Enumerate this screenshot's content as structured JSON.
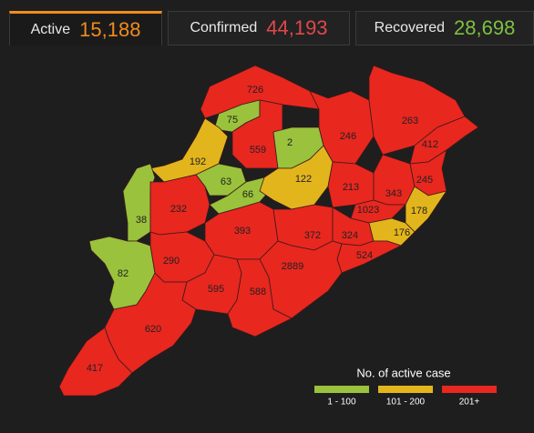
{
  "tabs": [
    {
      "label": "Active",
      "value": "15,188",
      "color": "#f28c1c"
    },
    {
      "label": "Confirmed",
      "value": "44,193",
      "color": "#e0474c"
    },
    {
      "label": "Recovered",
      "value": "28,698",
      "color": "#7cc142"
    }
  ],
  "map": {
    "districts": [
      {
        "value": 726,
        "color": "#e8271f"
      },
      {
        "value": 75,
        "color": "#9ac23c"
      },
      {
        "value": 559,
        "color": "#e8271f"
      },
      {
        "value": 2,
        "color": "#9ac23c"
      },
      {
        "value": 246,
        "color": "#e8271f"
      },
      {
        "value": 263,
        "color": "#e8271f"
      },
      {
        "value": 412,
        "color": "#e8271f"
      },
      {
        "value": 192,
        "color": "#e3b51c"
      },
      {
        "value": 63,
        "color": "#9ac23c"
      },
      {
        "value": 66,
        "color": "#9ac23c"
      },
      {
        "value": 122,
        "color": "#e3b51c"
      },
      {
        "value": 213,
        "color": "#e8271f"
      },
      {
        "value": 343,
        "color": "#e8271f"
      },
      {
        "value": 245,
        "color": "#e8271f"
      },
      {
        "value": 178,
        "color": "#e3b51c"
      },
      {
        "value": 1023,
        "color": "#e8271f"
      },
      {
        "value": 38,
        "color": "#9ac23c"
      },
      {
        "value": 232,
        "color": "#e8271f"
      },
      {
        "value": 393,
        "color": "#e8271f"
      },
      {
        "value": 372,
        "color": "#e8271f"
      },
      {
        "value": 324,
        "color": "#e8271f"
      },
      {
        "value": 176,
        "color": "#e3b51c"
      },
      {
        "value": 524,
        "color": "#e8271f"
      },
      {
        "value": 82,
        "color": "#9ac23c"
      },
      {
        "value": 290,
        "color": "#e8271f"
      },
      {
        "value": 2889,
        "color": "#e8271f"
      },
      {
        "value": 595,
        "color": "#e8271f"
      },
      {
        "value": 588,
        "color": "#e8271f"
      },
      {
        "value": 620,
        "color": "#e8271f"
      },
      {
        "value": 417,
        "color": "#e8271f"
      }
    ]
  },
  "legend": {
    "title": "No. of active case",
    "items": [
      {
        "label": "1 - 100",
        "color": "#9ac23c"
      },
      {
        "label": "101 - 200",
        "color": "#e3b51c"
      },
      {
        "label": "201+",
        "color": "#e8271f"
      }
    ]
  }
}
